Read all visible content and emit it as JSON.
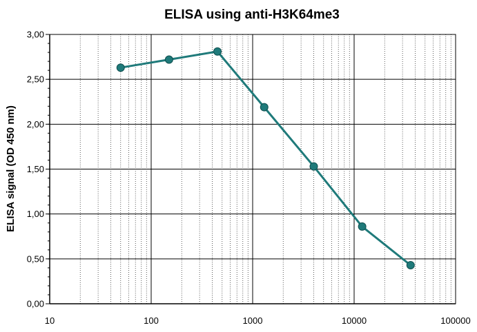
{
  "chart_data": {
    "type": "line",
    "title": "ELISA using anti-H3K64me3",
    "xlabel": "",
    "ylabel": "ELISA signal (OD 450 nm)",
    "x_scale": "log",
    "xlim": [
      10,
      100000
    ],
    "ylim": [
      0,
      3
    ],
    "grid": true,
    "x_ticks": [
      "10",
      "100",
      "1000",
      "10000",
      "100000"
    ],
    "y_ticks": [
      "0,00",
      "0,50",
      "1,00",
      "1,50",
      "2,00",
      "2,50",
      "3,00"
    ],
    "series": [
      {
        "x": [
          50,
          150,
          450,
          1300,
          4000,
          12000,
          36000
        ],
        "y": [
          2.63,
          2.72,
          2.81,
          2.19,
          1.53,
          0.86,
          0.43
        ],
        "color": "#1f7a7a"
      }
    ]
  }
}
